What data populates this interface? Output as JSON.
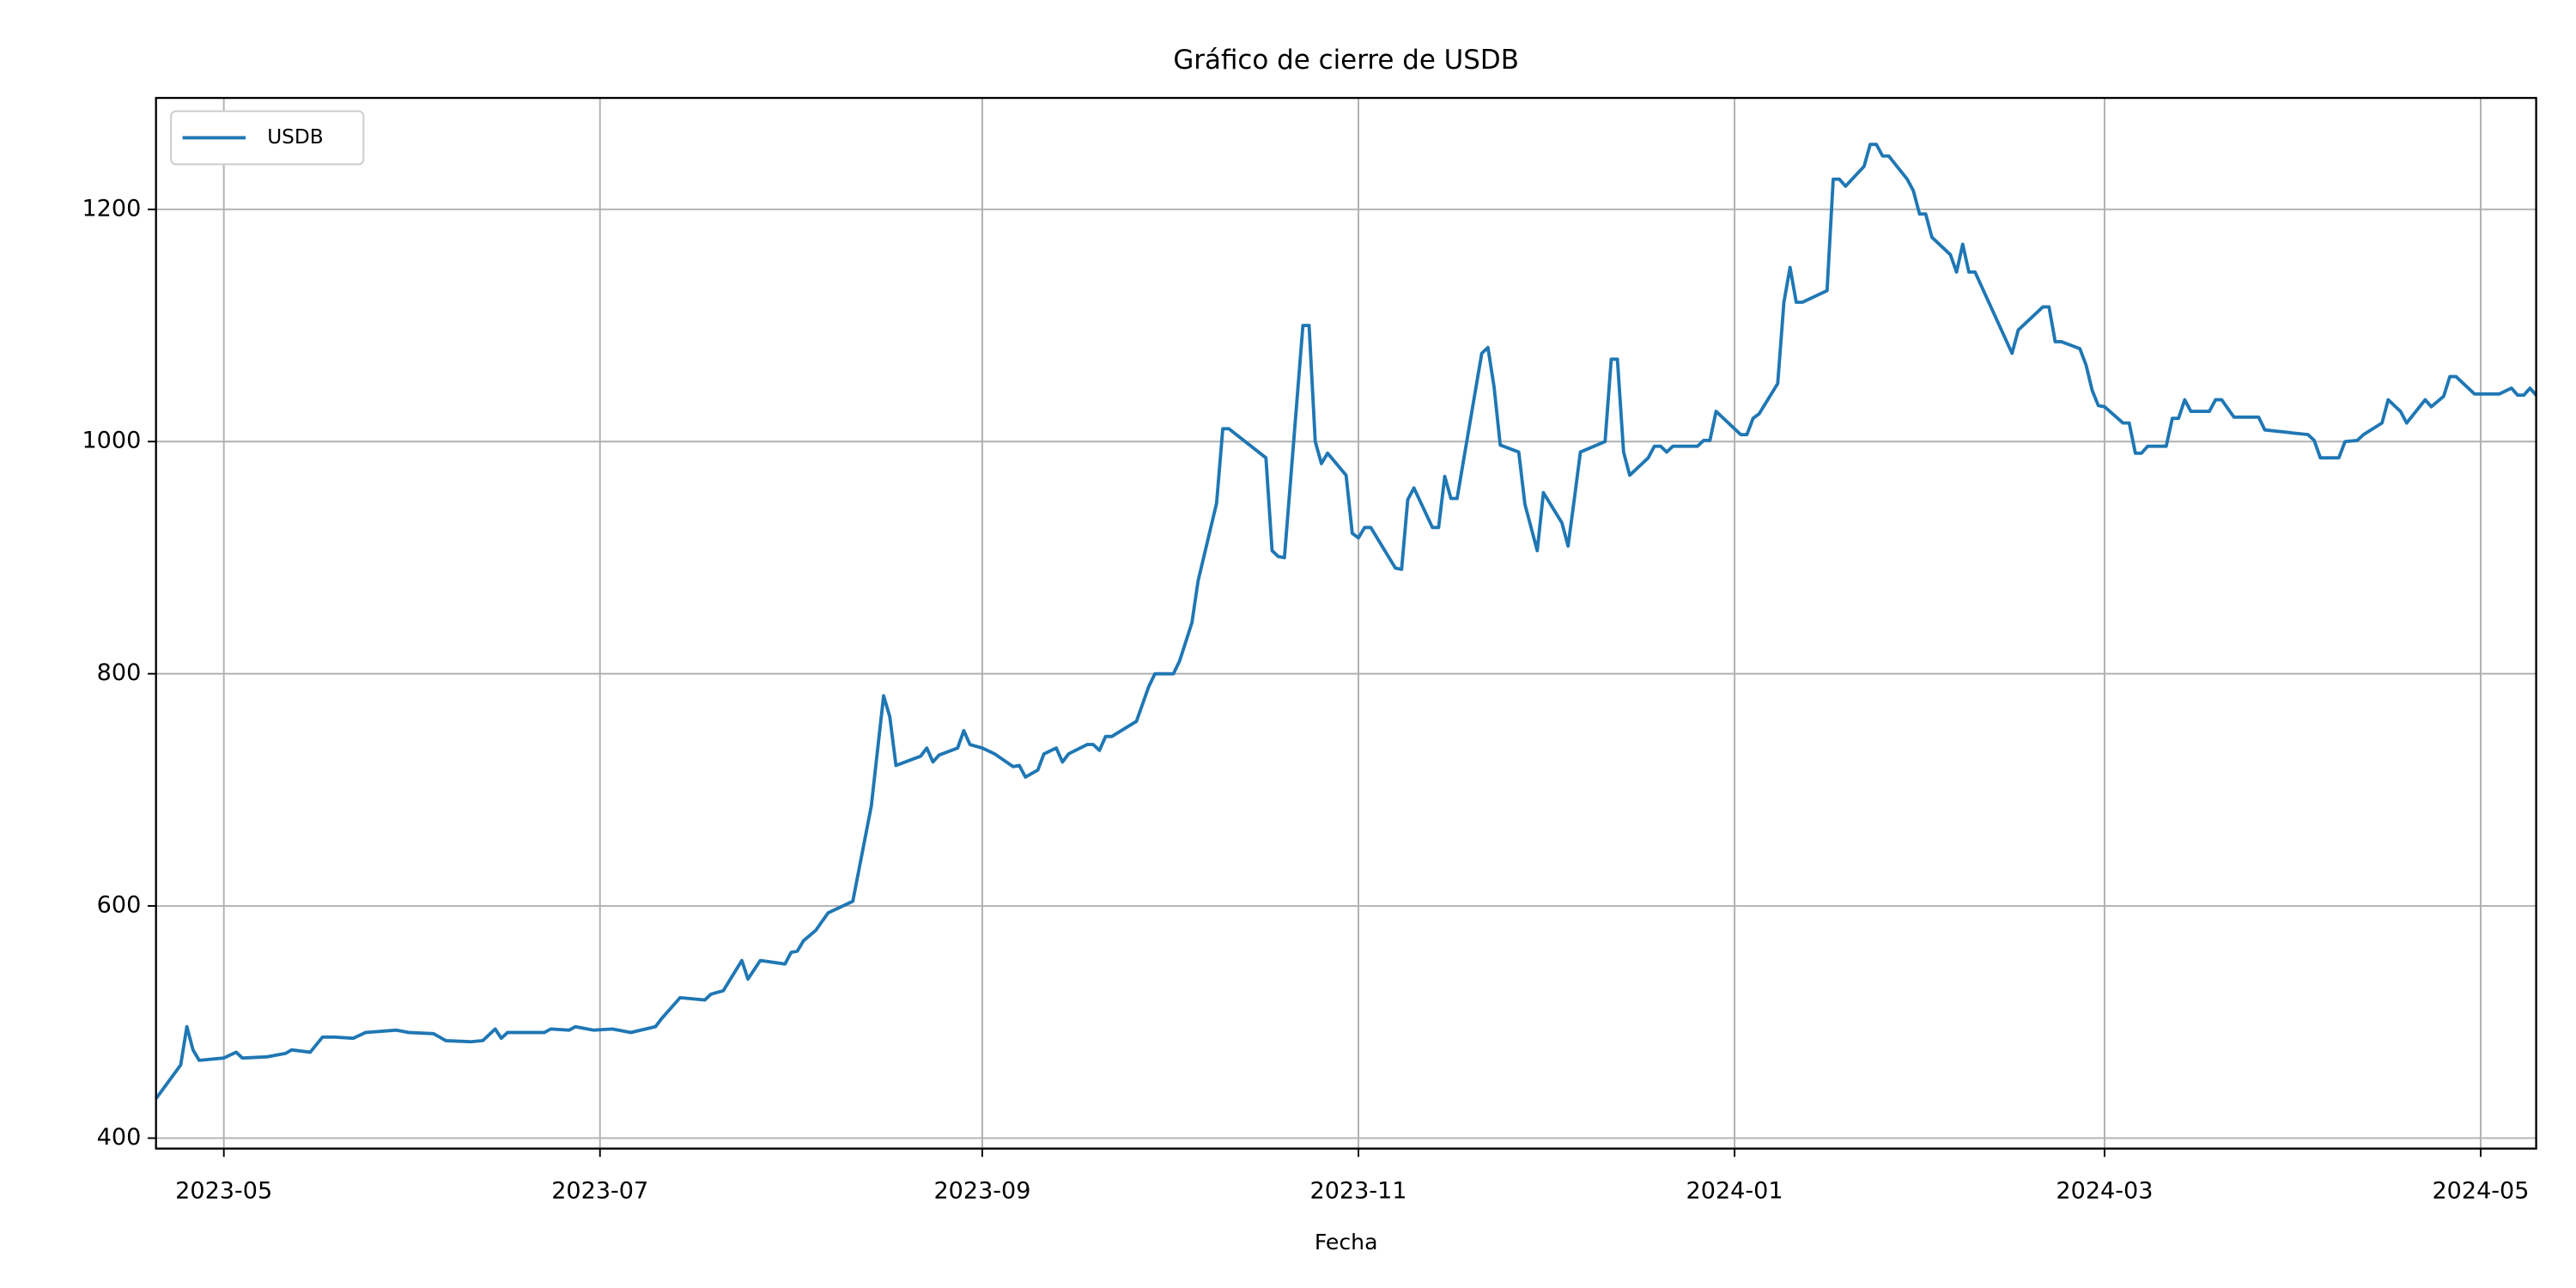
{
  "chart_data": {
    "type": "line",
    "title": "Gráfico de cierre de USDB",
    "xlabel": "Fecha",
    "grid": true,
    "legend": "upper left",
    "x": [
      "2023-04-20",
      "2023-04-24",
      "2023-04-25",
      "2023-04-26",
      "2023-04-27",
      "2023-05-01",
      "2023-05-03",
      "2023-05-04",
      "2023-05-08",
      "2023-05-11",
      "2023-05-12",
      "2023-05-15",
      "2023-05-17",
      "2023-05-19",
      "2023-05-22",
      "2023-05-24",
      "2023-05-29",
      "2023-05-31",
      "2023-06-04",
      "2023-06-06",
      "2023-06-10",
      "2023-06-12",
      "2023-06-14",
      "2023-06-15",
      "2023-06-16",
      "2023-06-22",
      "2023-06-23",
      "2023-06-26",
      "2023-06-27",
      "2023-06-30",
      "2023-07-03",
      "2023-07-06",
      "2023-07-10",
      "2023-07-11",
      "2023-07-14",
      "2023-07-18",
      "2023-07-19",
      "2023-07-21",
      "2023-07-24",
      "2023-07-25",
      "2023-07-27",
      "2023-07-31",
      "2023-08-01",
      "2023-08-02",
      "2023-08-03",
      "2023-08-05",
      "2023-08-07",
      "2023-08-11",
      "2023-08-14",
      "2023-08-16",
      "2023-08-17",
      "2023-08-18",
      "2023-08-22",
      "2023-08-23",
      "2023-08-24",
      "2023-08-25",
      "2023-08-28",
      "2023-08-29",
      "2023-08-30",
      "2023-09-01",
      "2023-09-03",
      "2023-09-06",
      "2023-09-07",
      "2023-09-08",
      "2023-09-10",
      "2023-09-11",
      "2023-09-13",
      "2023-09-14",
      "2023-09-15",
      "2023-09-18",
      "2023-09-19",
      "2023-09-20",
      "2023-09-21",
      "2023-09-22",
      "2023-09-26",
      "2023-09-28",
      "2023-09-29",
      "2023-10-02",
      "2023-10-03",
      "2023-10-05",
      "2023-10-06",
      "2023-10-09",
      "2023-10-10",
      "2023-10-11",
      "2023-10-17",
      "2023-10-18",
      "2023-10-19",
      "2023-10-20",
      "2023-10-23",
      "2023-10-24",
      "2023-10-25",
      "2023-10-26",
      "2023-10-27",
      "2023-10-30",
      "2023-10-31",
      "2023-11-01",
      "2023-11-02",
      "2023-11-03",
      "2023-11-07",
      "2023-11-08",
      "2023-11-09",
      "2023-11-10",
      "2023-11-13",
      "2023-11-14",
      "2023-11-15",
      "2023-11-16",
      "2023-11-17",
      "2023-11-21",
      "2023-11-22",
      "2023-11-23",
      "2023-11-24",
      "2023-11-27",
      "2023-11-28",
      "2023-11-30",
      "2023-12-01",
      "2023-12-04",
      "2023-12-05",
      "2023-12-06",
      "2023-12-07",
      "2023-12-11",
      "2023-12-12",
      "2023-12-13",
      "2023-12-14",
      "2023-12-15",
      "2023-12-18",
      "2023-12-19",
      "2023-12-20",
      "2023-12-21",
      "2023-12-22",
      "2023-12-26",
      "2023-12-27",
      "2023-12-28",
      "2023-12-29",
      "2024-01-02",
      "2024-01-03",
      "2024-01-04",
      "2024-01-05",
      "2024-01-08",
      "2024-01-09",
      "2024-01-10",
      "2024-01-11",
      "2024-01-12",
      "2024-01-16",
      "2024-01-17",
      "2024-01-18",
      "2024-01-19",
      "2024-01-22",
      "2024-01-23",
      "2024-01-24",
      "2024-01-25",
      "2024-01-26",
      "2024-01-29",
      "2024-01-30",
      "2024-01-31",
      "2024-02-01",
      "2024-02-02",
      "2024-02-05",
      "2024-02-06",
      "2024-02-07",
      "2024-02-08",
      "2024-02-09",
      "2024-02-15",
      "2024-02-16",
      "2024-02-20",
      "2024-02-21",
      "2024-02-22",
      "2024-02-23",
      "2024-02-26",
      "2024-02-27",
      "2024-02-28",
      "2024-02-29",
      "2024-03-01",
      "2024-03-04",
      "2024-03-05",
      "2024-03-06",
      "2024-03-07",
      "2024-03-08",
      "2024-03-11",
      "2024-03-12",
      "2024-03-13",
      "2024-03-14",
      "2024-03-15",
      "2024-03-18",
      "2024-03-19",
      "2024-03-20",
      "2024-03-22",
      "2024-03-26",
      "2024-03-27",
      "2024-04-03",
      "2024-04-04",
      "2024-04-05",
      "2024-04-08",
      "2024-04-09",
      "2024-04-11",
      "2024-04-12",
      "2024-04-15",
      "2024-04-16",
      "2024-04-18",
      "2024-04-19",
      "2024-04-22",
      "2024-04-23",
      "2024-04-25",
      "2024-04-26",
      "2024-04-27",
      "2024-04-30",
      "2024-05-04",
      "2024-05-06",
      "2024-05-07",
      "2024-05-08",
      "2024-05-09",
      "2024-05-10"
    ],
    "series": [
      {
        "name": "USDB",
        "color": "#1f77b4",
        "values": [
          434,
          463,
          496,
          476,
          467,
          469,
          474,
          469,
          470,
          473,
          476,
          474,
          487,
          487,
          486,
          491,
          493,
          491,
          490,
          484,
          483,
          484,
          494,
          486,
          491,
          491,
          494,
          493,
          496,
          493,
          494,
          491,
          496,
          503,
          521,
          519,
          524,
          527,
          553,
          537,
          553,
          550,
          560,
          561,
          570,
          579,
          594,
          604,
          686,
          781,
          763,
          721,
          729,
          736,
          724,
          730,
          736,
          751,
          739,
          736,
          731,
          720,
          721,
          711,
          717,
          731,
          736,
          724,
          731,
          739,
          739,
          734,
          746,
          746,
          759,
          789,
          800,
          800,
          811,
          844,
          880,
          947,
          1011,
          1011,
          986,
          906,
          901,
          900,
          1100,
          1100,
          1000,
          981,
          990,
          971,
          921,
          917,
          926,
          926,
          891,
          890,
          950,
          960,
          926,
          926,
          970,
          951,
          951,
          1076,
          1081,
          1047,
          997,
          991,
          946,
          906,
          956,
          930,
          910,
          950,
          991,
          1000,
          1071,
          1071,
          991,
          971,
          986,
          996,
          996,
          991,
          996,
          996,
          1001,
          1001,
          1026,
          1006,
          1006,
          1020,
          1024,
          1050,
          1120,
          1150,
          1120,
          1120,
          1130,
          1226,
          1226,
          1220,
          1237,
          1256,
          1256,
          1246,
          1246,
          1226,
          1216,
          1196,
          1196,
          1176,
          1161,
          1146,
          1170,
          1146,
          1146,
          1076,
          1096,
          1116,
          1116,
          1086,
          1086,
          1080,
          1066,
          1044,
          1031,
          1030,
          1016,
          1016,
          990,
          990,
          996,
          996,
          1020,
          1020,
          1036,
          1026,
          1026,
          1036,
          1036,
          1021,
          1021,
          1010,
          1006,
          1001,
          986,
          986,
          1000,
          1001,
          1006,
          1016,
          1036,
          1026,
          1016,
          1036,
          1030,
          1039,
          1056,
          1056,
          1041,
          1041,
          1046,
          1040,
          1040,
          1046,
          1040
        ]
      }
    ],
    "xlim": [
      "2023-04-20",
      "2024-05-10"
    ],
    "xticks": [
      "2023-05",
      "2023-07",
      "2023-09",
      "2023-11",
      "2024-01",
      "2024-03",
      "2024-05"
    ],
    "ylim": [
      391,
      1296
    ],
    "yticks": [
      400,
      600,
      800,
      1000,
      1200
    ]
  }
}
